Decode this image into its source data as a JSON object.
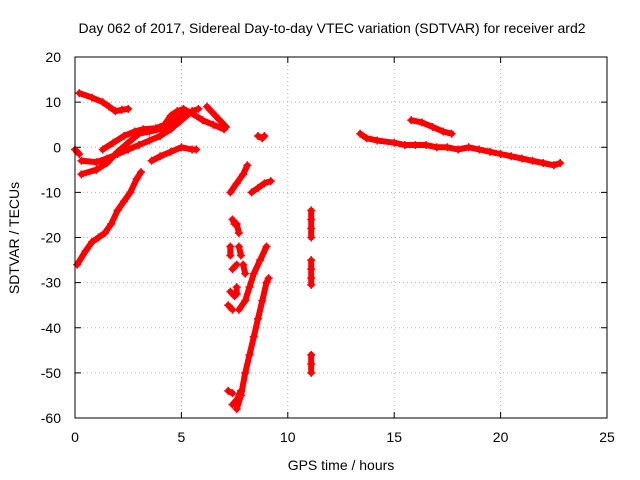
{
  "chart_data": {
    "type": "scatter",
    "title": "Day 062 of 2017, Sidereal Day-to-day VTEC variation (SDTVAR) for receiver ard2",
    "xlabel": "GPS time / hours",
    "ylabel": "SDTVAR / TECUs",
    "xlim": [
      0,
      25
    ],
    "ylim": [
      -60,
      20
    ],
    "x_ticks": [
      0,
      5,
      10,
      15,
      20,
      25
    ],
    "y_ticks": [
      20,
      10,
      0,
      -10,
      -20,
      -30,
      -40,
      -50,
      -60
    ],
    "grid": true,
    "marker": "+",
    "series": [
      {
        "name": "ard2",
        "color": "#ff0000",
        "tracks": [
          [
            [
              0.0,
              -0.5
            ],
            [
              0.1,
              -1.0
            ],
            [
              0.2,
              -1.5
            ]
          ],
          [
            [
              0.2,
              12.0
            ],
            [
              0.8,
              11.0
            ],
            [
              1.3,
              10.0
            ],
            [
              1.6,
              9.0
            ],
            [
              1.9,
              8.0
            ],
            [
              2.2,
              8.3
            ],
            [
              2.5,
              8.5
            ]
          ],
          [
            [
              0.3,
              -3.0
            ],
            [
              1.0,
              -3.3
            ],
            [
              1.5,
              -2.5
            ],
            [
              2.0,
              -1.5
            ],
            [
              2.5,
              -0.5
            ],
            [
              3.0,
              0.5
            ],
            [
              3.5,
              1.5
            ],
            [
              4.0,
              2.5
            ],
            [
              4.5,
              4.0
            ],
            [
              5.0,
              6.0
            ],
            [
              5.5,
              8.0
            ],
            [
              5.8,
              8.5
            ]
          ],
          [
            [
              0.3,
              -6.0
            ],
            [
              1.0,
              -5.0
            ],
            [
              1.5,
              -3.5
            ],
            [
              2.0,
              -1.0
            ],
            [
              2.5,
              1.0
            ],
            [
              3.0,
              3.0
            ],
            [
              3.5,
              3.5
            ],
            [
              4.0,
              4.0
            ],
            [
              4.5,
              5.5
            ],
            [
              5.0,
              7.0
            ],
            [
              5.3,
              7.5
            ]
          ],
          [
            [
              1.3,
              -0.5
            ],
            [
              1.8,
              1.0
            ],
            [
              2.3,
              2.5
            ],
            [
              2.8,
              3.5
            ],
            [
              3.2,
              4.0
            ],
            [
              3.8,
              4.2
            ],
            [
              4.2,
              5.0
            ],
            [
              4.5,
              7.0
            ],
            [
              4.8,
              8.0
            ],
            [
              5.1,
              8.5
            ],
            [
              5.5,
              7.5
            ],
            [
              6.0,
              6.0
            ],
            [
              6.5,
              5.0
            ],
            [
              7.0,
              4.0
            ]
          ],
          [
            [
              0.1,
              -26.0
            ],
            [
              0.5,
              -23.0
            ],
            [
              0.8,
              -21.0
            ],
            [
              1.1,
              -20.0
            ],
            [
              1.4,
              -19.0
            ],
            [
              1.7,
              -17.0
            ],
            [
              2.0,
              -14.0
            ],
            [
              2.3,
              -12.0
            ],
            [
              2.6,
              -10.0
            ],
            [
              2.9,
              -7.0
            ],
            [
              3.1,
              -5.5
            ]
          ],
          [
            [
              3.6,
              -3.0
            ],
            [
              4.0,
              -2.0
            ],
            [
              4.5,
              -1.0
            ],
            [
              5.0,
              0.0
            ],
            [
              5.5,
              -0.5
            ],
            [
              5.7,
              -0.5
            ]
          ],
          [
            [
              6.2,
              9.0
            ],
            [
              6.6,
              7.0
            ],
            [
              6.9,
              5.5
            ],
            [
              7.1,
              4.5
            ]
          ],
          [
            [
              7.3,
              -10.0
            ],
            [
              7.6,
              -8.0
            ],
            [
              7.9,
              -6.0
            ],
            [
              8.1,
              -4.0
            ]
          ],
          [
            [
              7.4,
              -16.0
            ],
            [
              7.5,
              -17.0
            ]
          ],
          [
            [
              7.6,
              -17.0
            ],
            [
              7.7,
              -19.0
            ]
          ],
          [
            [
              7.3,
              -22.0
            ],
            [
              7.3,
              -24.0
            ]
          ],
          [
            [
              7.7,
              -22.0
            ],
            [
              7.8,
              -24.0
            ]
          ],
          [
            [
              7.4,
              -27.0
            ],
            [
              7.6,
              -26.0
            ]
          ],
          [
            [
              7.9,
              -26.0
            ],
            [
              8.0,
              -28.0
            ]
          ],
          [
            [
              7.3,
              -32.0
            ],
            [
              7.5,
              -33.0
            ]
          ],
          [
            [
              7.6,
              -31.0
            ],
            [
              7.6,
              -32.5
            ]
          ],
          [
            [
              7.2,
              -35.0
            ],
            [
              7.4,
              -36.0
            ]
          ],
          [
            [
              7.7,
              -36.0
            ],
            [
              8.0,
              -34.0
            ],
            [
              8.2,
              -31.0
            ],
            [
              8.4,
              -28.0
            ],
            [
              8.7,
              -25.0
            ],
            [
              9.0,
              -22.0
            ]
          ],
          [
            [
              7.2,
              -54.0
            ],
            [
              7.4,
              -54.5
            ]
          ],
          [
            [
              7.4,
              -57.0
            ],
            [
              7.6,
              -56.0
            ],
            [
              7.8,
              -54.0
            ]
          ],
          [
            [
              7.6,
              -58.0
            ],
            [
              7.8,
              -55.0
            ],
            [
              8.0,
              -50.0
            ],
            [
              8.2,
              -46.0
            ],
            [
              8.4,
              -42.0
            ],
            [
              8.6,
              -38.0
            ],
            [
              8.8,
              -34.0
            ],
            [
              9.0,
              -30.0
            ],
            [
              9.1,
              -29.0
            ]
          ],
          [
            [
              8.3,
              -10.0
            ],
            [
              8.6,
              -9.0
            ],
            [
              8.9,
              -8.0
            ],
            [
              9.2,
              -7.5
            ]
          ],
          [
            [
              8.6,
              2.5
            ],
            [
              8.8,
              2.0
            ],
            [
              8.9,
              2.5
            ]
          ],
          [
            [
              11.1,
              -14.0
            ],
            [
              11.1,
              -16.0
            ],
            [
              11.1,
              -18.0
            ],
            [
              11.1,
              -20.0
            ]
          ],
          [
            [
              11.1,
              -25.0
            ],
            [
              11.1,
              -27.0
            ],
            [
              11.1,
              -29.0
            ],
            [
              11.1,
              -30.5
            ]
          ],
          [
            [
              11.1,
              -46.0
            ],
            [
              11.1,
              -48.0
            ],
            [
              11.1,
              -50.0
            ]
          ],
          [
            [
              13.4,
              3.0
            ],
            [
              13.7,
              2.0
            ],
            [
              14.2,
              1.5
            ],
            [
              15.0,
              1.0
            ],
            [
              15.5,
              0.5
            ],
            [
              16.0,
              0.5
            ],
            [
              16.5,
              0.5
            ],
            [
              17.0,
              0.0
            ],
            [
              17.5,
              0.0
            ],
            [
              18.0,
              -0.5
            ],
            [
              18.5,
              0.0
            ],
            [
              19.0,
              -0.5
            ],
            [
              19.5,
              -1.0
            ],
            [
              20.0,
              -1.5
            ],
            [
              20.5,
              -2.0
            ],
            [
              21.0,
              -2.5
            ],
            [
              21.5,
              -3.0
            ],
            [
              22.0,
              -3.5
            ],
            [
              22.5,
              -4.0
            ],
            [
              22.8,
              -3.5
            ]
          ],
          [
            [
              15.8,
              6.0
            ],
            [
              16.3,
              5.5
            ],
            [
              16.8,
              4.5
            ],
            [
              17.3,
              3.5
            ],
            [
              17.7,
              3.0
            ]
          ]
        ]
      }
    ]
  }
}
